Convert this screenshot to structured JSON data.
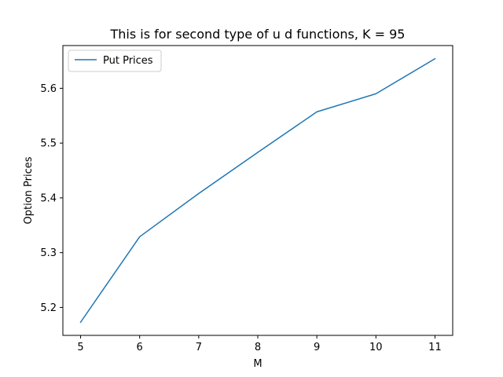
{
  "chart_data": {
    "type": "line",
    "title": "This is for second type of u d functions, K = 95",
    "xlabel": "M",
    "ylabel": "Option Prices",
    "x": [
      5,
      6,
      7,
      8,
      9,
      10,
      11
    ],
    "series": [
      {
        "name": "Put Prices",
        "color": "#1f77b4",
        "values": [
          5.173,
          5.329,
          5.408,
          5.483,
          5.557,
          5.59,
          5.654
        ]
      }
    ],
    "xlim": [
      4.7,
      11.3
    ],
    "ylim": [
      5.149,
      5.678
    ],
    "xticks": [
      5,
      6,
      7,
      8,
      9,
      10,
      11
    ],
    "yticks": [
      5.2,
      5.3,
      5.4,
      5.5,
      5.6
    ],
    "ytick_labels": [
      "5.2",
      "5.3",
      "5.4",
      "5.5",
      "5.6"
    ],
    "xtick_labels": [
      "5",
      "6",
      "7",
      "8",
      "9",
      "10",
      "11"
    ],
    "grid": false,
    "legend_position": "upper left"
  }
}
